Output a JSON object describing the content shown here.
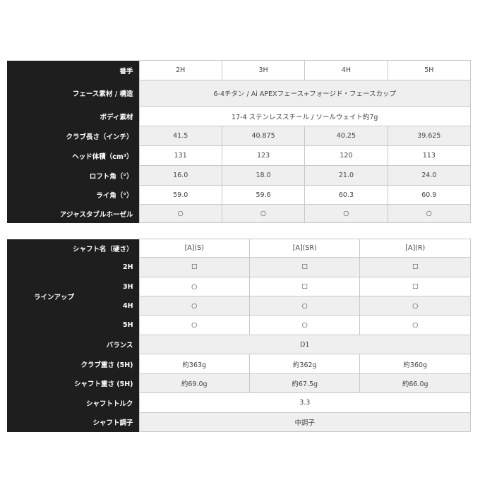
{
  "spec": {
    "labels": {
      "number": "番手",
      "face": "フェース素材 / 構造",
      "body": "ボディ素材",
      "length": "クラブ長さ（インチ）",
      "head": "ヘッド体積（cm³）",
      "loft": "ロフト角（°）",
      "lie": "ライ角（°）",
      "hosel": "アジャスタブルホーゼル"
    },
    "numbers": [
      "2H",
      "3H",
      "4H",
      "5H"
    ],
    "face": "6-4チタン / Ai APEXフェース+フォージド・フェースカップ",
    "body": "17-4 ステンレススチール / ソールウェイト約7g",
    "length": [
      "41.5",
      "40.875",
      "40.25",
      "39.625"
    ],
    "head": [
      "131",
      "123",
      "120",
      "113"
    ],
    "loft": [
      "16.0",
      "18.0",
      "21.0",
      "24.0"
    ],
    "lie": [
      "59.0",
      "59.6",
      "60.3",
      "60.9"
    ],
    "hosel": [
      "○",
      "○",
      "○",
      "○"
    ]
  },
  "shaft": {
    "labels": {
      "name": "シャフト名（硬さ）",
      "lineup": "ラインアップ",
      "balance": "バランス",
      "club_weight": "クラブ重さ (5H)",
      "shaft_weight": "シャフト重さ (5H)",
      "torque": "シャフトトルク",
      "kick": "シャフト調子"
    },
    "names": [
      "[A](S)",
      "[A](SR)",
      "[A](R)"
    ],
    "lineup": [
      {
        "num": "2H",
        "values": [
          "☐",
          "☐",
          "☐"
        ]
      },
      {
        "num": "3H",
        "values": [
          "○",
          "☐",
          "☐"
        ]
      },
      {
        "num": "4H",
        "values": [
          "○",
          "○",
          "○"
        ]
      },
      {
        "num": "5H",
        "values": [
          "○",
          "○",
          "○"
        ]
      }
    ],
    "balance": "D1",
    "club_weight": [
      "約363g",
      "約362g",
      "約360g"
    ],
    "shaft_weight": [
      "約69.0g",
      "約67.5g",
      "約66.0g"
    ],
    "torque": "3.3",
    "kick": "中調子"
  }
}
